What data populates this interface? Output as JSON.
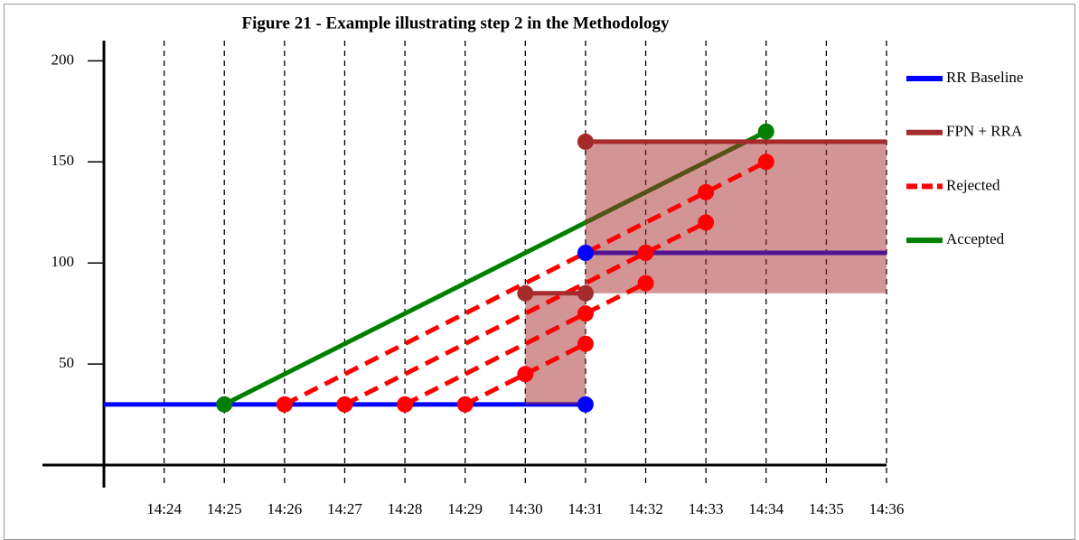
{
  "chart_data": {
    "type": "line",
    "title": "Figure 21 - Example illustrating step 2 in the Methodology",
    "xlim": [
      "14:23",
      "14:36"
    ],
    "xticks": [
      "14:24",
      "14:25",
      "14:26",
      "14:27",
      "14:28",
      "14:29",
      "14:30",
      "14:31",
      "14:32",
      "14:33",
      "14:34",
      "14:35",
      "14:36"
    ],
    "ylim": [
      0,
      210
    ],
    "yticks": [
      50,
      100,
      150,
      200
    ],
    "grid": true,
    "legend": "right",
    "series": [
      {
        "name": "RR Baseline",
        "color": "#0000ff",
        "dashed": false,
        "x": [
          "14:23",
          "14:31",
          null,
          "14:31",
          "14:36"
        ],
        "values": [
          30,
          30,
          null,
          105,
          105
        ],
        "markers": [
          false,
          true,
          null,
          true,
          false
        ]
      },
      {
        "name": "FPN + RRA",
        "color": "#a52a2a",
        "dashed": false,
        "x": [
          "14:30",
          "14:31",
          null,
          "14:31",
          "14:36"
        ],
        "values": [
          85,
          85,
          null,
          160,
          160
        ],
        "markers": [
          true,
          true,
          null,
          true,
          false
        ]
      },
      {
        "name": "Rejected",
        "color": "#ff0000",
        "dashed": true,
        "x": [
          "14:26",
          "14:33",
          "14:34",
          null,
          "14:27",
          "14:32",
          "14:33",
          null,
          "14:28",
          "14:31",
          "14:32",
          null,
          "14:29",
          "14:30",
          "14:31"
        ],
        "values": [
          30,
          135,
          150,
          null,
          30,
          105,
          120,
          null,
          30,
          75,
          90,
          null,
          30,
          45,
          60
        ],
        "markers": [
          true,
          true,
          true,
          null,
          true,
          true,
          true,
          null,
          true,
          true,
          true,
          null,
          true,
          true,
          true
        ]
      },
      {
        "name": "Accepted",
        "color": "#008000",
        "dashed": false,
        "x": [
          "14:25",
          "14:34"
        ],
        "values": [
          30,
          165
        ],
        "markers": [
          true,
          true
        ]
      }
    ],
    "areas": [
      {
        "x": [
          "14:30",
          "14:31"
        ],
        "y": [
          30,
          85
        ],
        "color": "rgba(165,42,42,0.5)"
      },
      {
        "x": [
          "14:31",
          "14:36"
        ],
        "y": [
          85,
          160
        ],
        "color": "rgba(165,42,42,0.5)"
      }
    ]
  }
}
